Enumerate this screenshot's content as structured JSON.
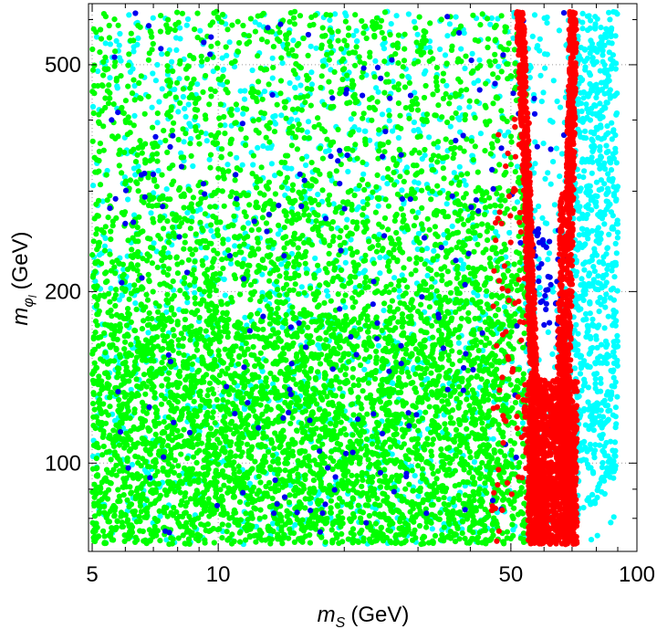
{
  "chart_data": {
    "type": "scatter",
    "title": "",
    "xlabel": {
      "symbol": "m",
      "subscript": "S",
      "unit": "(GeV)"
    },
    "ylabel": {
      "symbol": "m",
      "subscript": "φ",
      "subsub": "l",
      "unit": "(GeV)"
    },
    "xscale": "log",
    "yscale": "log",
    "xlim": [
      4.9,
      100
    ],
    "ylim": [
      70,
      640
    ],
    "x_ticks": [
      {
        "value": 5,
        "label": "5"
      },
      {
        "value": 10,
        "label": "10"
      },
      {
        "value": 50,
        "label": "50"
      },
      {
        "value": 100,
        "label": "100"
      }
    ],
    "y_ticks": [
      {
        "value": 100,
        "label": "100"
      },
      {
        "value": 200,
        "label": "200"
      },
      {
        "value": 500,
        "label": "500"
      }
    ],
    "x_minor_ticks": [
      6,
      7,
      8,
      9,
      20,
      30,
      40,
      60,
      70,
      80,
      90
    ],
    "y_minor_ticks": [
      80,
      90,
      300,
      400,
      600
    ],
    "grid": "dotted at labeled ticks",
    "series": [
      {
        "name": "cyan",
        "color": "#00ffff",
        "x_range": [
          5,
          90
        ],
        "y_range": [
          72,
          620
        ],
        "density": "high",
        "note": "fills whole region incl. wedge right of red band"
      },
      {
        "name": "green",
        "color": "#00ff00",
        "x_range": [
          5,
          60
        ],
        "y_range": [
          72,
          620
        ],
        "density": "very high at low mass, sparser above 300 GeV"
      },
      {
        "name": "blue",
        "color": "#0000ee",
        "x_range": [
          5,
          70
        ],
        "y_range": [
          72,
          620
        ],
        "density": "sparse, scattered"
      },
      {
        "name": "red",
        "color": "#ff0000",
        "x_range": [
          48,
          75
        ],
        "y_range": [
          72,
          620
        ],
        "density": "dense resonance band, V-shaped funnel near m_S ≈ 55–75 GeV"
      }
    ]
  }
}
